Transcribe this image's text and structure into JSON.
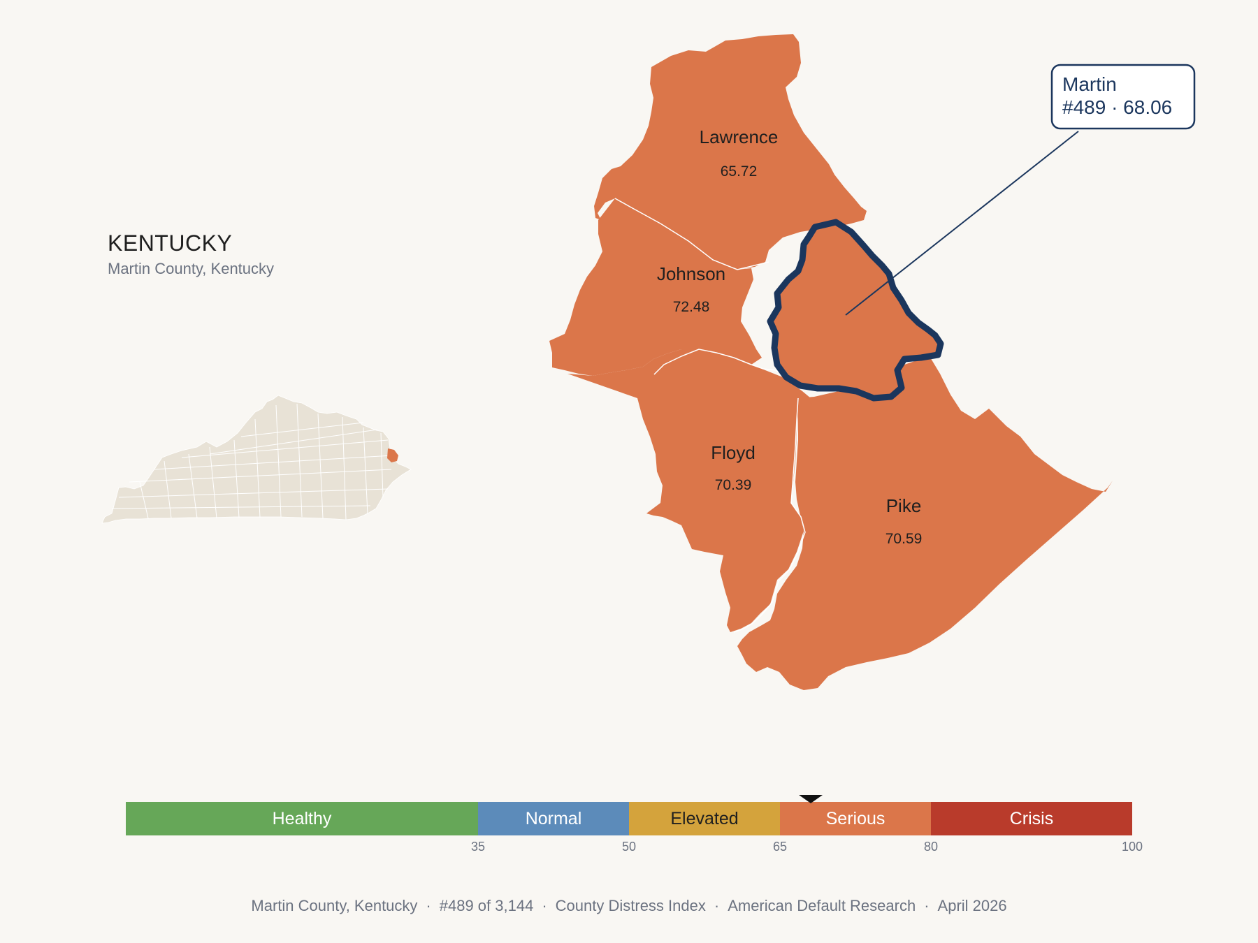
{
  "overview": {
    "state_name": "KENTUCKY",
    "subtitle": "Martin County, Kentucky"
  },
  "colors": {
    "background": "#f9f7f3",
    "county_fill": "#db764a",
    "state_fill": "#e8e2d6",
    "highlight_outline": "#1b365d",
    "callout_border": "#1b365d"
  },
  "counties": [
    {
      "name": "Lawrence",
      "value": "65.72"
    },
    {
      "name": "Johnson",
      "value": "72.48"
    },
    {
      "name": "Floyd",
      "value": "70.39"
    },
    {
      "name": "Pike",
      "value": "70.59"
    }
  ],
  "highlight": {
    "name": "Martin",
    "detail": "#489 · 68.06",
    "score": 68.06
  },
  "scale": {
    "min": 0,
    "max": 100,
    "bands": [
      {
        "label": "Healthy",
        "from": 0,
        "to": 35,
        "color": "#66a758"
      },
      {
        "label": "Normal",
        "from": 35,
        "to": 50,
        "color": "#5c8bba"
      },
      {
        "label": "Elevated",
        "from": 50,
        "to": 65,
        "color": "#d4a33c"
      },
      {
        "label": "Serious",
        "from": 65,
        "to": 80,
        "color": "#db764a"
      },
      {
        "label": "Crisis",
        "from": 80,
        "to": 100,
        "color": "#b93b2b"
      }
    ],
    "ticks": [
      "35",
      "50",
      "65",
      "80",
      "100"
    ]
  },
  "footer": {
    "parts": [
      "Martin County, Kentucky",
      "#489 of 3,144",
      "County Distress Index",
      "American Default Research",
      "April 2026"
    ]
  }
}
